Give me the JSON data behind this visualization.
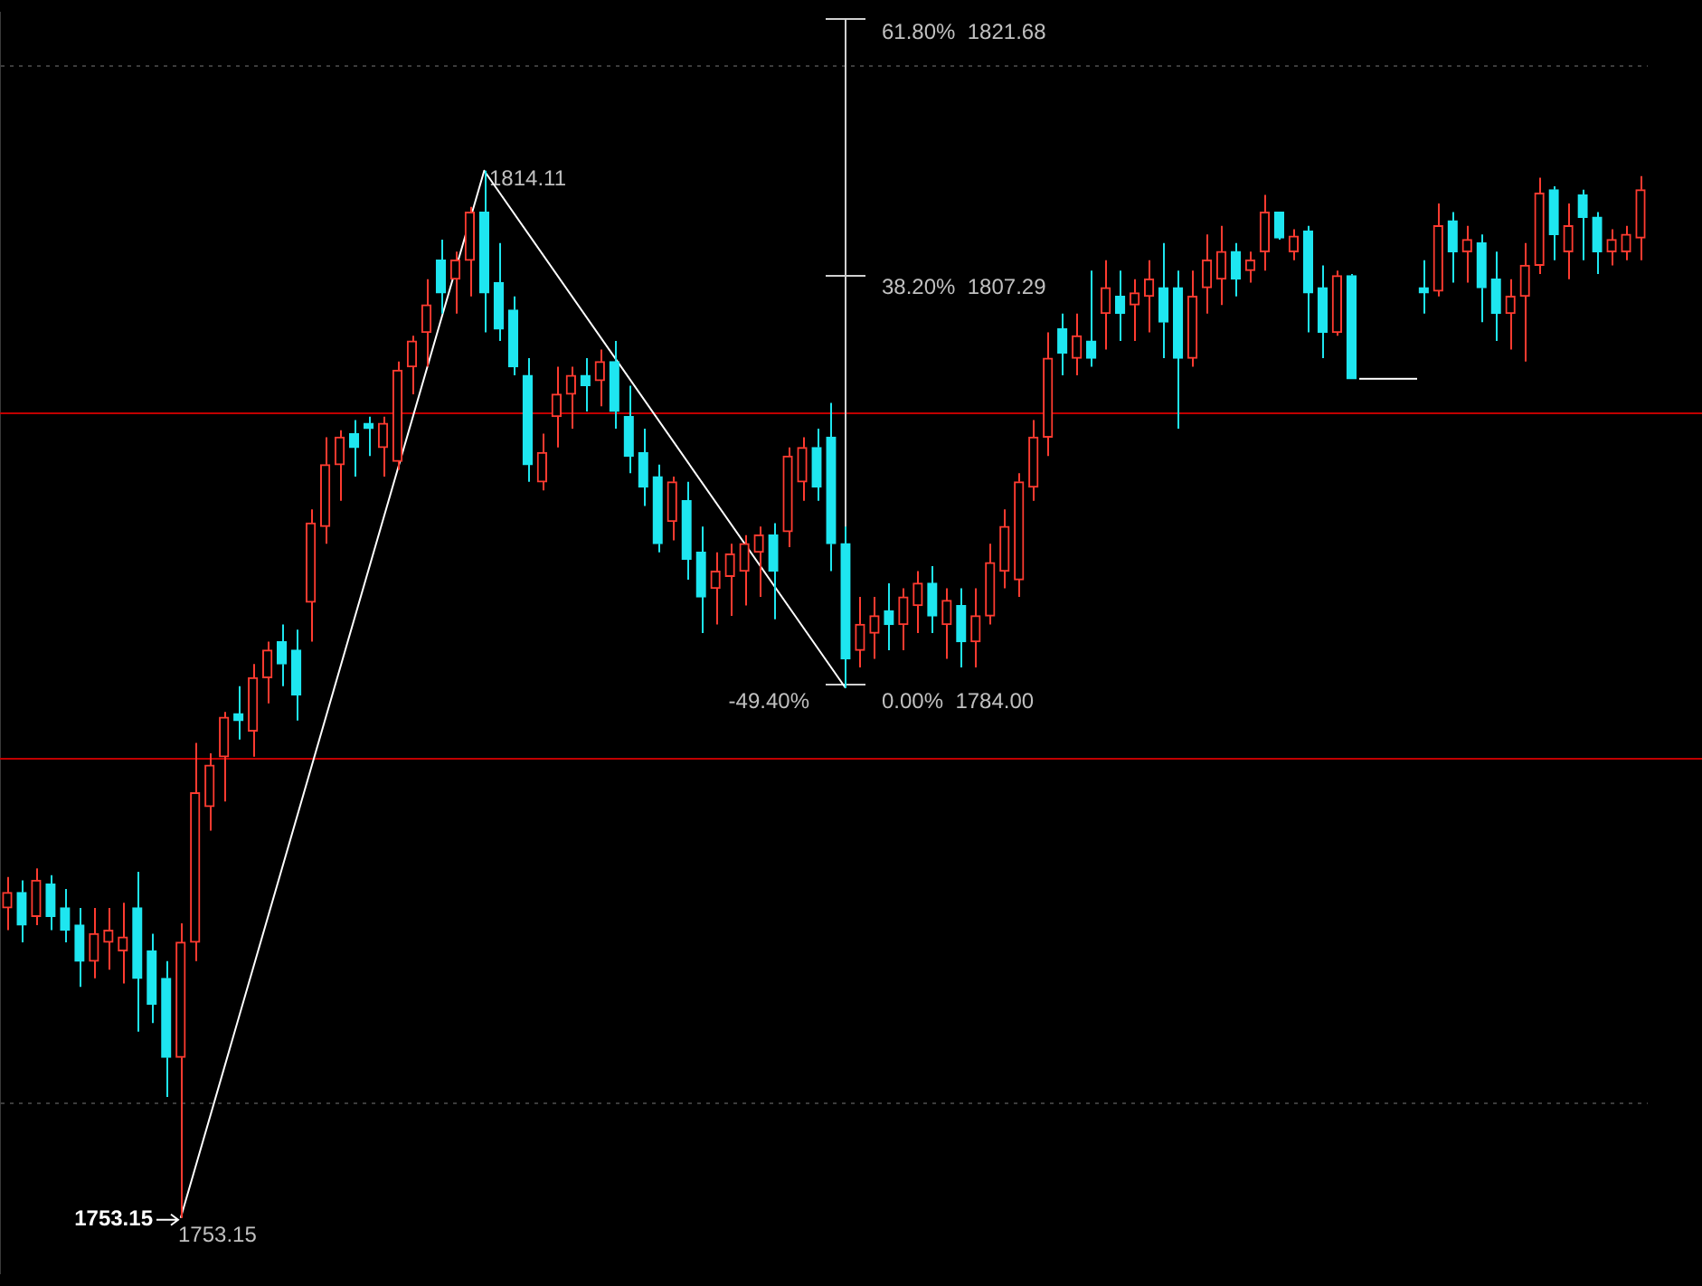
{
  "chart_data": {
    "type": "candlestick",
    "categories": [
      null,
      null,
      null,
      null,
      null,
      null,
      null,
      null,
      null,
      null,
      null,
      null,
      null,
      null,
      null,
      null,
      null,
      null,
      null,
      null,
      null,
      null,
      null,
      null,
      null,
      null,
      null,
      null,
      null,
      null,
      null,
      null,
      null,
      null,
      null,
      null,
      null,
      null,
      null,
      null,
      null,
      null,
      null,
      null,
      null,
      null,
      null,
      null,
      null,
      null,
      null,
      null,
      null,
      null,
      null,
      null,
      null,
      null,
      null,
      null,
      null,
      null,
      null,
      null,
      null,
      null,
      null,
      null,
      null,
      null,
      null,
      null,
      null,
      null,
      null,
      null,
      null,
      null,
      null,
      null,
      null,
      null,
      null,
      null,
      null,
      null,
      null,
      null,
      null,
      null,
      null,
      null,
      null,
      null,
      null,
      null,
      null,
      null,
      null,
      null,
      null,
      null,
      null,
      null,
      null,
      null,
      null,
      null,
      null,
      null,
      null,
      null,
      null,
      null
    ],
    "ohlc": [
      [
        1771.2,
        1773.0,
        1769.9,
        1772.1
      ],
      [
        1772.1,
        1772.8,
        1769.2,
        1770.2
      ],
      [
        1770.7,
        1773.5,
        1770.2,
        1772.8
      ],
      [
        1772.6,
        1773.1,
        1769.9,
        1770.7
      ],
      [
        1771.2,
        1772.3,
        1769.2,
        1769.9
      ],
      [
        1770.2,
        1771.2,
        1766.6,
        1768.1
      ],
      [
        1768.1,
        1771.2,
        1767.1,
        1769.7
      ],
      [
        1769.2,
        1771.2,
        1767.6,
        1769.9
      ],
      [
        1768.7,
        1771.5,
        1766.8,
        1769.5
      ],
      [
        1771.2,
        1773.3,
        1764.0,
        1767.1
      ],
      [
        1768.7,
        1769.7,
        1764.5,
        1765.6
      ],
      [
        1767.1,
        1768.1,
        1760.2,
        1762.5
      ],
      [
        1762.5,
        1770.3,
        1753.15,
        1769.2
      ],
      [
        1769.2,
        1780.8,
        1768.1,
        1777.9
      ],
      [
        1777.1,
        1780.2,
        1775.7,
        1779.5
      ],
      [
        1780.0,
        1782.6,
        1777.4,
        1782.3
      ],
      [
        1782.5,
        1784.1,
        1781.0,
        1782.1
      ],
      [
        1781.5,
        1785.4,
        1780.0,
        1784.6
      ],
      [
        1784.6,
        1786.7,
        1783.1,
        1786.2
      ],
      [
        1786.7,
        1787.7,
        1784.1,
        1785.4
      ],
      [
        1786.2,
        1787.4,
        1782.1,
        1783.6
      ],
      [
        1789.0,
        1794.4,
        1786.7,
        1793.6
      ],
      [
        1793.4,
        1798.6,
        1792.4,
        1797.0
      ],
      [
        1797.0,
        1799.0,
        1794.9,
        1798.6
      ],
      [
        1798.8,
        1799.6,
        1796.3,
        1798.0
      ],
      [
        1799.4,
        1799.8,
        1797.5,
        1799.1
      ],
      [
        1798.0,
        1799.8,
        1796.3,
        1799.4
      ],
      [
        1797.2,
        1803.0,
        1796.7,
        1802.5
      ],
      [
        1802.7,
        1804.5,
        1801.1,
        1804.2
      ],
      [
        1804.7,
        1807.8,
        1802.7,
        1806.3
      ],
      [
        1808.9,
        1810.1,
        1805.8,
        1807.0
      ],
      [
        1807.8,
        1809.4,
        1805.8,
        1808.9
      ],
      [
        1808.9,
        1812.0,
        1806.8,
        1811.7
      ],
      [
        1811.7,
        1814.11,
        1804.7,
        1807.0
      ],
      [
        1807.6,
        1809.9,
        1804.2,
        1804.9
      ],
      [
        1806.0,
        1806.8,
        1802.2,
        1802.7
      ],
      [
        1802.2,
        1803.2,
        1796.0,
        1797.0
      ],
      [
        1796.0,
        1798.8,
        1795.5,
        1797.7
      ],
      [
        1799.8,
        1802.7,
        1798.0,
        1801.1
      ],
      [
        1801.1,
        1802.7,
        1799.1,
        1802.2
      ],
      [
        1802.2,
        1803.2,
        1800.1,
        1801.6
      ],
      [
        1801.9,
        1803.7,
        1800.4,
        1803.0
      ],
      [
        1803.0,
        1804.2,
        1799.1,
        1800.1
      ],
      [
        1799.8,
        1801.6,
        1796.5,
        1797.5
      ],
      [
        1797.7,
        1799.1,
        1794.6,
        1795.7
      ],
      [
        1796.3,
        1797.0,
        1791.9,
        1792.4
      ],
      [
        1793.7,
        1796.3,
        1792.6,
        1796.0
      ],
      [
        1794.9,
        1796.0,
        1790.3,
        1791.5
      ],
      [
        1791.9,
        1793.4,
        1787.2,
        1789.3
      ],
      [
        1789.8,
        1791.9,
        1787.7,
        1790.8
      ],
      [
        1790.5,
        1792.4,
        1788.2,
        1791.8
      ],
      [
        1790.8,
        1792.9,
        1788.8,
        1792.4
      ],
      [
        1791.9,
        1793.4,
        1789.3,
        1792.9
      ],
      [
        1792.9,
        1793.6,
        1788.0,
        1790.8
      ],
      [
        1793.1,
        1798.0,
        1792.2,
        1797.5
      ],
      [
        1796.0,
        1798.6,
        1794.9,
        1798.0
      ],
      [
        1798.0,
        1799.1,
        1794.9,
        1795.7
      ],
      [
        1798.6,
        1800.6,
        1790.8,
        1792.4
      ],
      [
        1792.4,
        1793.4,
        1784.0,
        1785.7
      ],
      [
        1786.2,
        1789.3,
        1785.2,
        1787.7
      ],
      [
        1787.2,
        1789.3,
        1785.7,
        1788.2
      ],
      [
        1788.5,
        1790.1,
        1786.2,
        1787.7
      ],
      [
        1787.7,
        1789.8,
        1786.2,
        1789.3
      ],
      [
        1788.8,
        1790.8,
        1787.2,
        1790.1
      ],
      [
        1790.1,
        1791.1,
        1787.2,
        1788.2
      ],
      [
        1787.7,
        1789.8,
        1785.7,
        1789.1
      ],
      [
        1788.8,
        1789.8,
        1785.2,
        1786.7
      ],
      [
        1786.7,
        1789.8,
        1785.2,
        1788.2
      ],
      [
        1788.2,
        1792.4,
        1787.7,
        1791.3
      ],
      [
        1790.8,
        1794.4,
        1789.8,
        1793.4
      ],
      [
        1790.3,
        1796.5,
        1789.3,
        1796.0
      ],
      [
        1795.7,
        1799.6,
        1794.9,
        1798.6
      ],
      [
        1798.6,
        1804.7,
        1797.5,
        1803.2
      ],
      [
        1804.9,
        1805.8,
        1802.2,
        1803.5
      ],
      [
        1803.2,
        1805.8,
        1802.2,
        1804.5
      ],
      [
        1804.2,
        1808.3,
        1802.7,
        1803.2
      ],
      [
        1805.8,
        1808.9,
        1803.7,
        1807.3
      ],
      [
        1806.8,
        1808.3,
        1804.2,
        1805.8
      ],
      [
        1806.3,
        1807.8,
        1804.2,
        1807.0
      ],
      [
        1806.8,
        1808.9,
        1804.7,
        1807.8
      ],
      [
        1807.3,
        1809.9,
        1803.2,
        1805.3
      ],
      [
        1807.3,
        1808.3,
        1799.1,
        1803.2
      ],
      [
        1803.2,
        1808.3,
        1802.7,
        1806.8
      ],
      [
        1807.3,
        1810.4,
        1805.8,
        1808.9
      ],
      [
        1807.8,
        1810.9,
        1806.3,
        1809.4
      ],
      [
        1809.4,
        1809.9,
        1806.8,
        1807.8
      ],
      [
        1808.3,
        1809.4,
        1807.6,
        1808.9
      ],
      [
        1809.4,
        1812.7,
        1808.3,
        1811.7
      ],
      [
        1811.7,
        1811.7,
        1810.1,
        1810.2
      ],
      [
        1809.4,
        1810.7,
        1808.9,
        1810.3
      ],
      [
        1810.6,
        1810.9,
        1804.7,
        1807.0
      ],
      [
        1807.3,
        1808.6,
        1803.2,
        1804.7
      ],
      [
        1804.7,
        1808.3,
        1804.5,
        1808.0
      ],
      [
        1808.0,
        1808.1,
        1802.0,
        1802.0
      ],
      [
        1802.0,
        1802.0,
        1802.0,
        1802.0
      ],
      [
        1802.0,
        1802.0,
        1802.0,
        1802.0
      ],
      [
        1802.0,
        1802.0,
        1802.0,
        1802.0
      ],
      [
        1802.0,
        1802.0,
        1802.0,
        1802.0
      ],
      [
        1807.3,
        1808.9,
        1805.8,
        1807.0
      ],
      [
        1807.1,
        1812.2,
        1806.8,
        1810.9
      ],
      [
        1811.2,
        1811.7,
        1807.6,
        1809.4
      ],
      [
        1809.4,
        1810.9,
        1807.6,
        1810.1
      ],
      [
        1809.9,
        1810.4,
        1805.3,
        1807.3
      ],
      [
        1807.8,
        1809.4,
        1804.2,
        1805.8
      ],
      [
        1805.8,
        1807.8,
        1803.7,
        1806.8
      ],
      [
        1806.8,
        1809.9,
        1803.0,
        1808.6
      ],
      [
        1808.6,
        1813.7,
        1808.1,
        1812.8
      ],
      [
        1813.0,
        1813.2,
        1808.9,
        1810.4
      ],
      [
        1809.4,
        1812.2,
        1807.8,
        1810.9
      ],
      [
        1812.7,
        1813.0,
        1808.9,
        1811.4
      ],
      [
        1811.4,
        1811.7,
        1808.1,
        1809.4
      ],
      [
        1809.4,
        1810.7,
        1808.6,
        1810.1
      ],
      [
        1809.4,
        1810.9,
        1808.9,
        1810.4
      ],
      [
        1810.2,
        1813.8,
        1808.9,
        1813.0
      ]
    ],
    "series": [
      {
        "type": "line",
        "color": "#ffffff",
        "values": [
          null,
          null,
          null,
          null,
          null,
          null,
          null,
          null,
          null,
          null,
          null,
          null,
          1753.15,
          null,
          null,
          null,
          null,
          null,
          null,
          null,
          null,
          null,
          null,
          null,
          null,
          null,
          null,
          null,
          null,
          null,
          null,
          null,
          null,
          1814.11,
          null,
          null,
          null,
          null,
          null,
          null,
          null,
          null,
          null,
          null,
          null,
          null,
          null,
          null,
          null,
          null,
          null,
          null,
          null,
          null,
          null,
          null,
          null,
          null,
          1784.0,
          null,
          null,
          null,
          null,
          null,
          null,
          null,
          null,
          null,
          null,
          null,
          null,
          null,
          null,
          null,
          null,
          null,
          null,
          null,
          null,
          null,
          null,
          null,
          null,
          null,
          null,
          null,
          null,
          null,
          null,
          null,
          null,
          null,
          null,
          null,
          null,
          null,
          null,
          null,
          null,
          null,
          null,
          null,
          null,
          null,
          null,
          null,
          null,
          null,
          null,
          null,
          null,
          null,
          null,
          null
        ]
      }
    ],
    "ylim": [
      1749.95,
      1823.29
    ],
    "yticks": [
      {
        "value": 1820.2,
        "label": null
      },
      {
        "value": 1759.85,
        "label": null
      }
    ],
    "grid": "y",
    "legend": false,
    "ref_lines": [
      {
        "axis": "y",
        "value": 1800.08,
        "color": "#c00000"
      },
      {
        "axis": "y",
        "value": 1779.97,
        "color": "#c00000"
      }
    ],
    "annotations": [
      "1814.11",
      "1753.15",
      "1753.15",
      "61.80%  1821.68",
      "38.20%  1807.29",
      "-49.40%",
      "0.00%  1784.00"
    ]
  }
}
